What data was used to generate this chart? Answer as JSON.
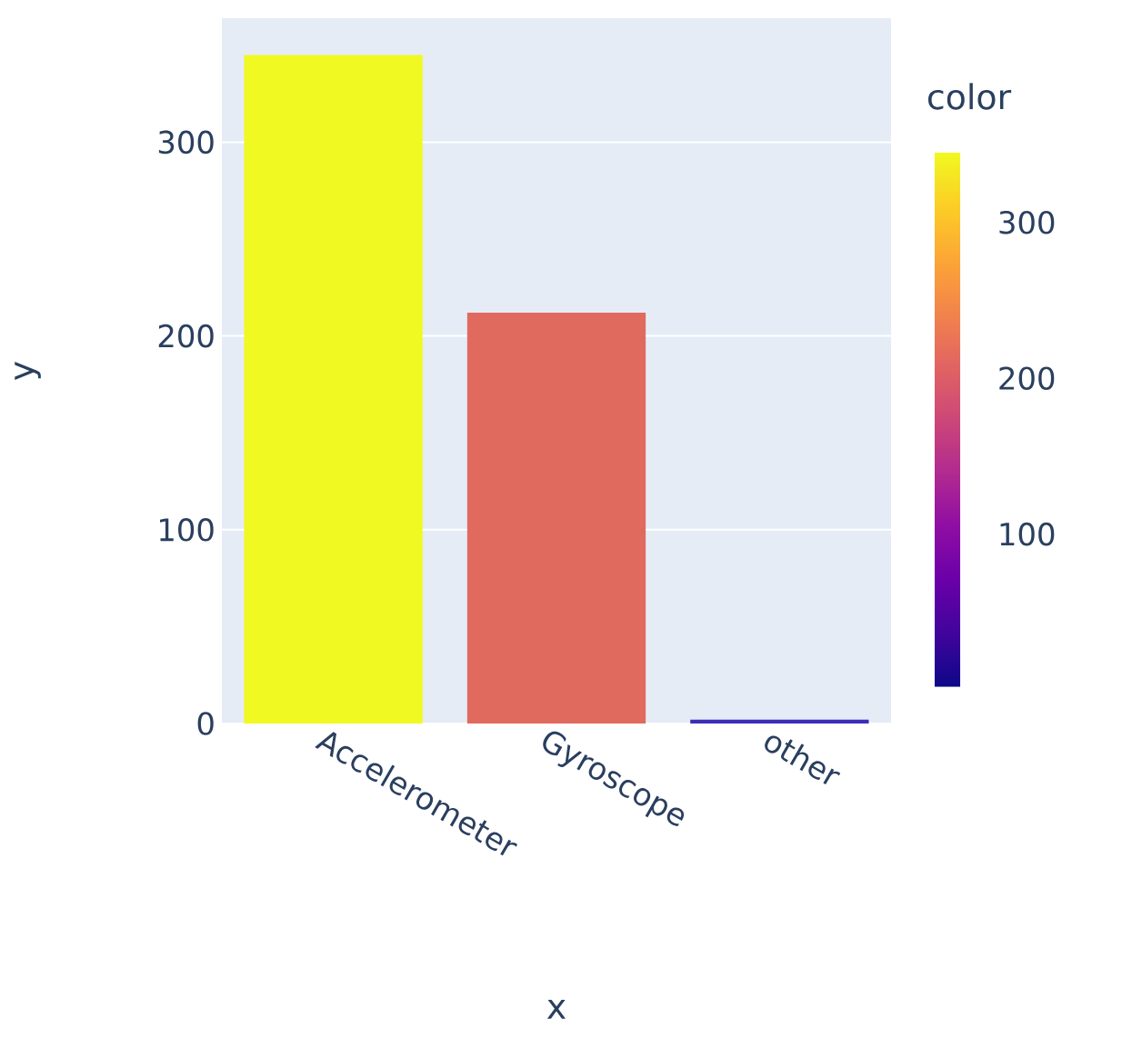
{
  "chart_data": {
    "type": "bar",
    "xlabel": "x",
    "ylabel": "y",
    "clabel": "color",
    "categories": [
      "Accelerometer",
      "Gyroscope",
      "other"
    ],
    "values": [
      345,
      212,
      2
    ],
    "colors": [
      "#f0f921",
      "#e16a5e",
      "#3d2db5"
    ],
    "ylim": [
      0,
      364
    ],
    "yticks": [
      0,
      100,
      200,
      300
    ],
    "clim": [
      2,
      345
    ],
    "cticks": [
      100,
      200,
      300
    ],
    "grid": "y"
  }
}
